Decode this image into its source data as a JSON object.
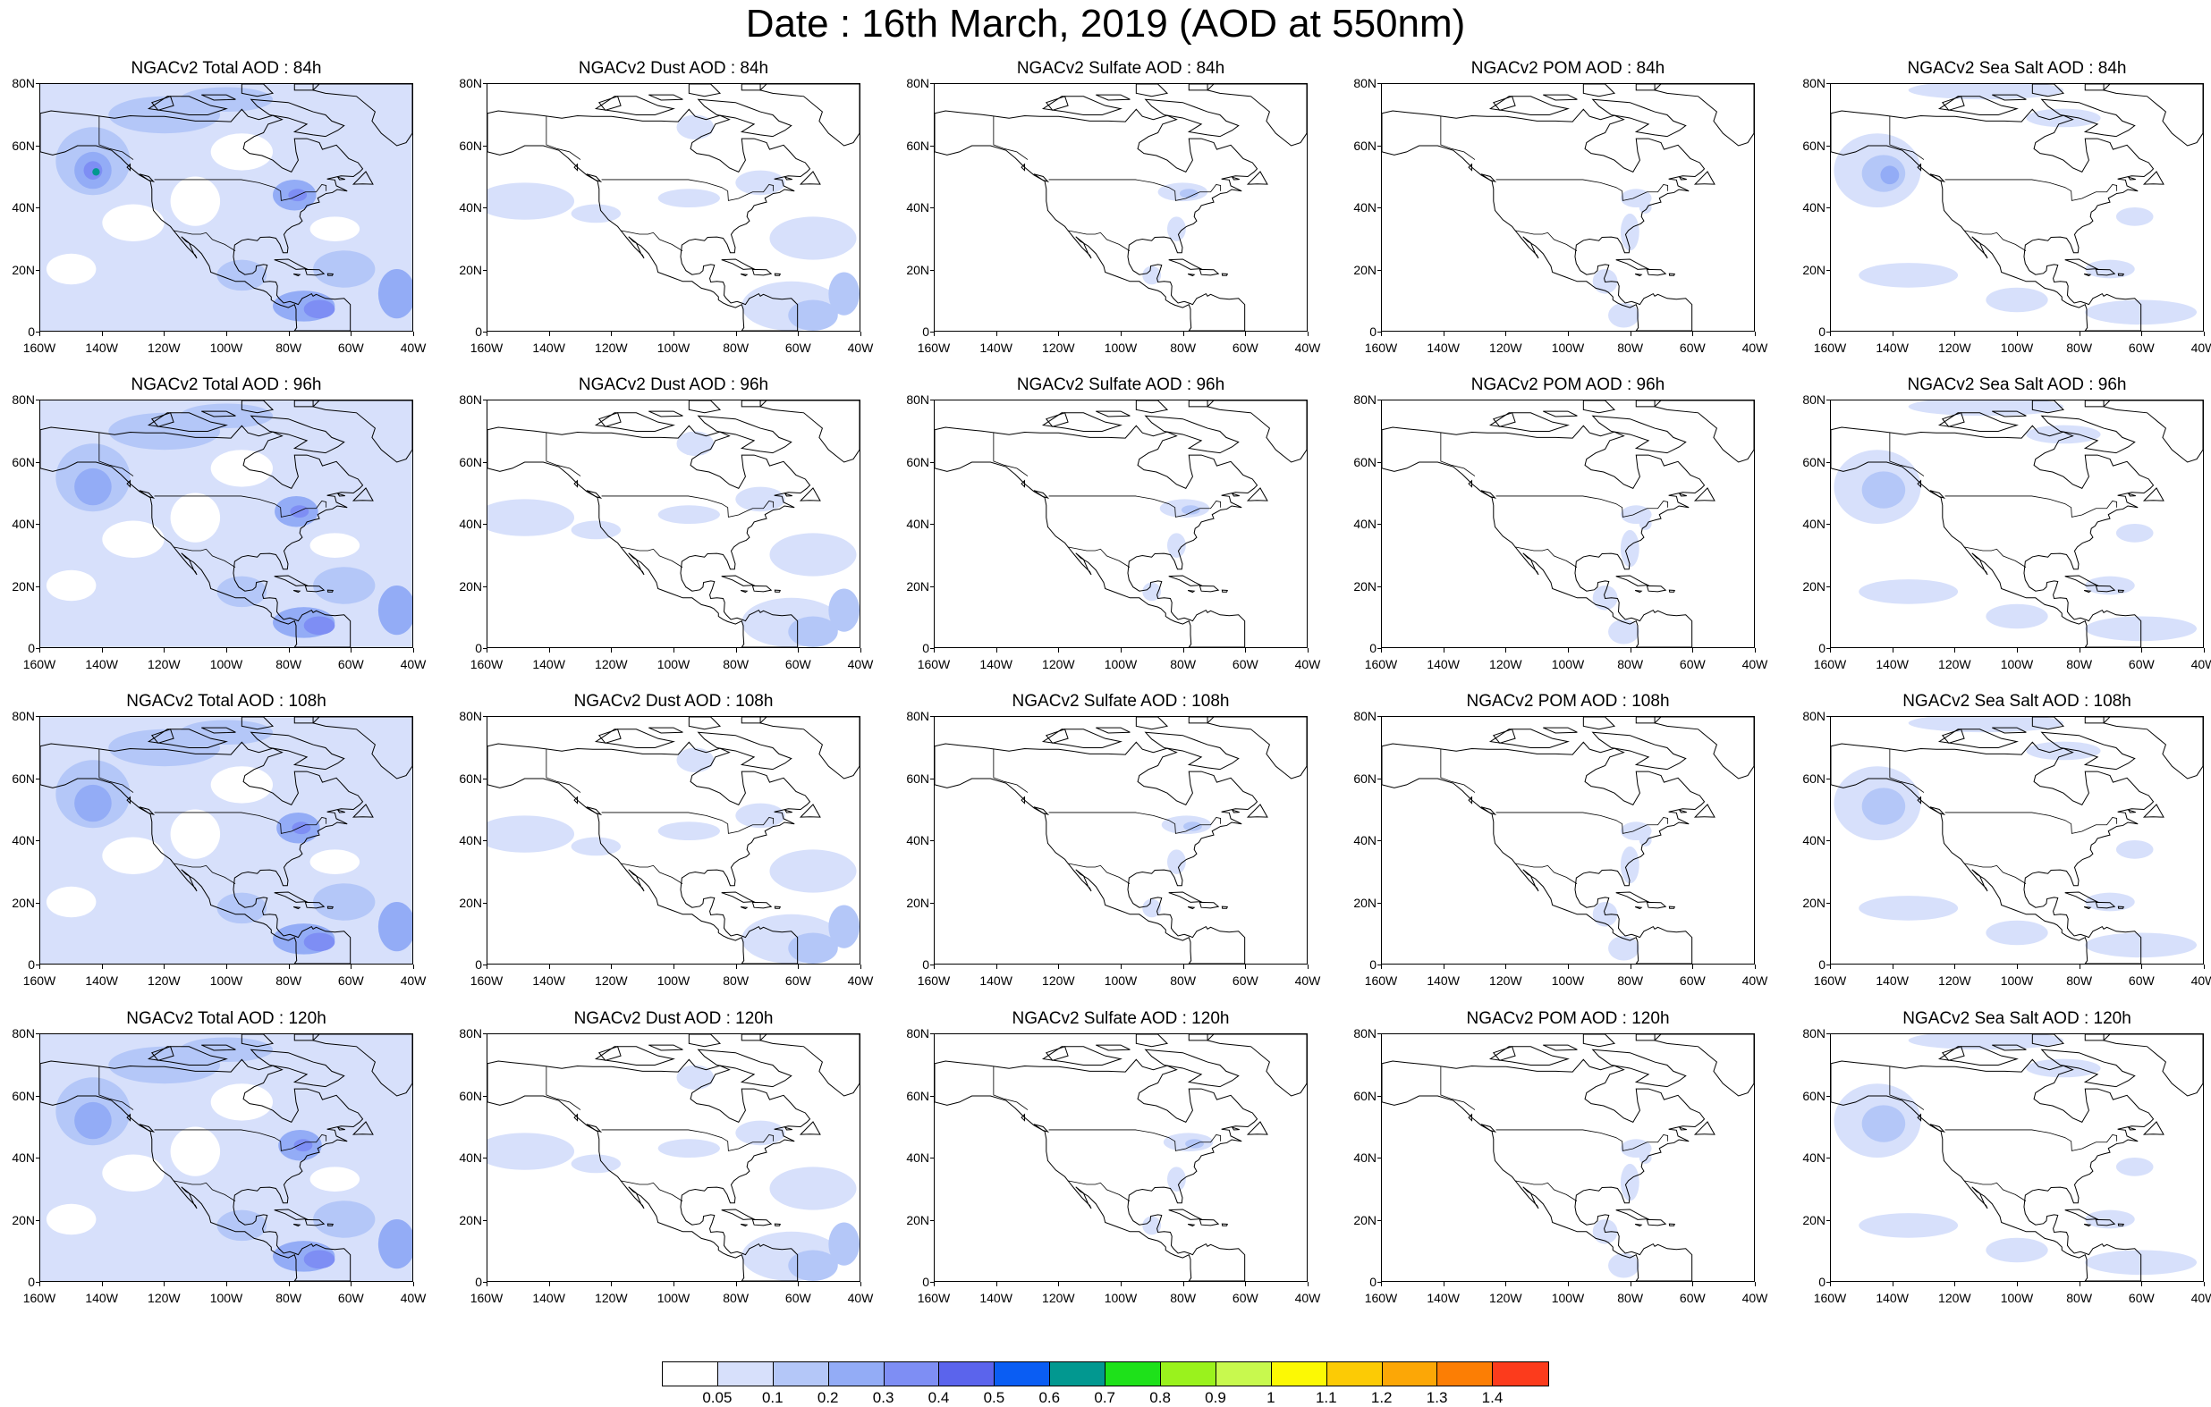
{
  "title": "Date : 16th March, 2019 (AOD at 550nm)",
  "panel_titles": [
    [
      "NGACv2 Total AOD : 84h",
      "NGACv2 Dust AOD : 84h",
      "NGACv2 Sulfate AOD : 84h",
      "NGACv2 POM AOD : 84h",
      "NGACv2 Sea Salt AOD : 84h"
    ],
    [
      "NGACv2 Total AOD : 96h",
      "NGACv2 Dust AOD : 96h",
      "NGACv2 Sulfate AOD : 96h",
      "NGACv2 POM AOD : 96h",
      "NGACv2 Sea Salt AOD : 96h"
    ],
    [
      "NGACv2 Total AOD : 108h",
      "NGACv2 Dust AOD : 108h",
      "NGACv2 Sulfate AOD : 108h",
      "NGACv2 POM AOD : 108h",
      "NGACv2 Sea Salt AOD : 108h"
    ],
    [
      "NGACv2 Total AOD : 120h",
      "NGACv2 Dust AOD : 120h",
      "NGACv2 Sulfate AOD : 120h",
      "NGACv2 POM AOD : 120h",
      "NGACv2 Sea Salt  AOD : 120h"
    ]
  ],
  "lat_ticks": [
    "80N",
    "60N",
    "40N",
    "20N",
    "0"
  ],
  "lon_ticks": [
    "160W",
    "140W",
    "120W",
    "100W",
    "80W",
    "60W",
    "40W"
  ],
  "colorbar": {
    "colors": [
      "#ffffff",
      "#d7e0fb",
      "#b4c7f8",
      "#93acf6",
      "#7e8ef4",
      "#5b64ec",
      "#0a5df3",
      "#029890",
      "#1ee11a",
      "#9af21d",
      "#c8f94e",
      "#fcf904",
      "#fccb05",
      "#fca706",
      "#fc7e04",
      "#fc3b1c"
    ],
    "labels": [
      "0.05",
      "0.1",
      "0.2",
      "0.3",
      "0.4",
      "0.5",
      "0.6",
      "0.7",
      "0.8",
      "0.9",
      "1",
      "1.1",
      "1.2",
      "1.3",
      "1.4"
    ]
  },
  "shading_colors": {
    "light": "#d7e0fb",
    "medium": "#b4c7f8",
    "strong": "#93acf6",
    "intense": "#7e8ef4",
    "peak": "#5b64ec",
    "core": "#029890"
  },
  "species_by_column": [
    "total",
    "dust",
    "sulfate",
    "pom",
    "seasalt"
  ]
}
